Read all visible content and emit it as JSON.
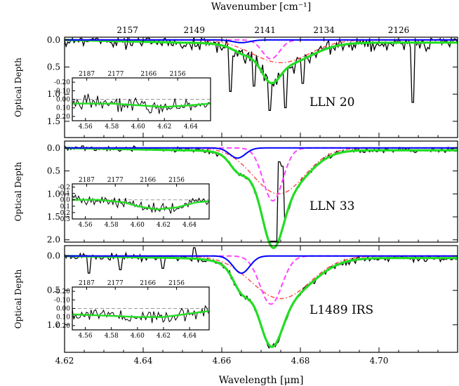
{
  "chart_data": {
    "type": "line",
    "xlabel": "Wavelength [μm]",
    "top_xlabel": "Wavenumber [cm⁻¹]",
    "xlim": [
      4.62,
      4.72
    ],
    "x_ticks": [
      "4.62",
      "4.64",
      "4.66",
      "4.68",
      "4.70"
    ],
    "top_ticks": [
      "2157",
      "2149",
      "2141",
      "2134",
      "2126"
    ],
    "top_tick_positions_um": [
      4.636,
      4.653,
      4.671,
      4.686,
      4.705
    ],
    "ylabel": "Optical Depth",
    "y_inverted": true,
    "colors": {
      "data": "#000000",
      "fit": "#22dd22",
      "blue_component": "#0000ff",
      "magenta_component": "#ff44ff",
      "red_component": "#ff4444"
    },
    "panels": [
      {
        "label": "LLN 20",
        "ylim": [
          1.8,
          -0.05
        ],
        "y_ticks": [
          "0.0",
          "0.5",
          "1.0",
          "1.5"
        ],
        "blue": {
          "center": 4.665,
          "depth": 0.05,
          "width": 0.0022
        },
        "magenta": {
          "center": 4.6725,
          "depth": 0.35,
          "width": 0.0022
        },
        "red": {
          "center": 4.675,
          "depth": 0.42,
          "width": 0.0072
        },
        "fit_offset": 0.05,
        "noise": 0.12,
        "spikes": [
          [
            4.672,
            1.3
          ],
          [
            4.676,
            1.25
          ],
          [
            4.7085,
            1.15
          ],
          [
            4.662,
            0.95
          ],
          [
            4.668,
            0.85
          ],
          [
            4.6805,
            0.8
          ]
        ],
        "inset": {
          "top_ticks": [
            "2187",
            "2177",
            "2166",
            "2156"
          ],
          "x_ticks": [
            "4.56",
            "4.58",
            "4.60",
            "4.62",
            "4.64"
          ],
          "xlim": [
            4.55,
            4.655
          ],
          "y_ticks": [
            "-0.20",
            "-0.10",
            "0.00",
            "0.10",
            "0.20"
          ],
          "ylim": [
            0.25,
            -0.25
          ],
          "fit": [
            [
              4.55,
              0.05
            ],
            [
              4.58,
              0.05
            ],
            [
              4.6,
              0.07
            ],
            [
              4.62,
              0.09
            ],
            [
              4.64,
              0.07
            ],
            [
              4.655,
              0.05
            ]
          ]
        }
      },
      {
        "label": "LLN 33",
        "ylim": [
          2.05,
          -0.15
        ],
        "y_ticks": [
          "0.0",
          "0.5",
          "1.0",
          "1.5",
          "2.0"
        ],
        "blue": {
          "center": 4.664,
          "depth": 0.22,
          "width": 0.002
        },
        "magenta": {
          "center": 4.673,
          "depth": 1.15,
          "width": 0.0025
        },
        "red": {
          "center": 4.6745,
          "depth": 1.0,
          "width": 0.0065
        },
        "fit_offset": 0.05,
        "noise": 0.05,
        "spikes": [
          [
            4.6755,
            0.4
          ],
          [
            4.6745,
            0.3
          ]
        ],
        "inset": {
          "top_ticks": [
            "2187",
            "2177",
            "2166",
            "2156"
          ],
          "x_ticks": [
            "4.56",
            "4.58",
            "4.60",
            "4.62",
            "4.64"
          ],
          "xlim": [
            4.55,
            4.655
          ],
          "y_ticks": [
            "-0.2",
            "-0.1",
            "0.0",
            "0.1",
            "0.2",
            "0.3"
          ],
          "ylim": [
            0.3,
            -0.25
          ],
          "fit": [
            [
              4.55,
              0.0
            ],
            [
              4.57,
              0.0
            ],
            [
              4.59,
              0.04
            ],
            [
              4.6,
              0.1
            ],
            [
              4.615,
              0.15
            ],
            [
              4.63,
              0.12
            ],
            [
              4.645,
              0.04
            ],
            [
              4.655,
              0.02
            ]
          ]
        }
      },
      {
        "label": "L1489 IRS",
        "ylim": [
          1.4,
          -0.15
        ],
        "y_ticks": [
          "0.0",
          "0.5",
          "1.0"
        ],
        "blue": {
          "center": 4.665,
          "depth": 0.25,
          "width": 0.0021
        },
        "magenta": {
          "center": 4.6725,
          "depth": 0.7,
          "width": 0.0028
        },
        "red": {
          "center": 4.675,
          "depth": 0.62,
          "width": 0.0075
        },
        "fit_offset": 0.03,
        "noise": 0.04,
        "spikes": [
          [
            4.653,
            -0.12
          ],
          [
            4.626,
            0.25
          ],
          [
            4.634,
            0.2
          ],
          [
            4.645,
            0.18
          ]
        ],
        "inset": {
          "top_ticks": [
            "2187",
            "2177",
            "2166",
            "2156"
          ],
          "x_ticks": [
            "4.56",
            "4.58",
            "4.60",
            "4.62",
            "4.64"
          ],
          "xlim": [
            4.55,
            4.655
          ],
          "y_ticks": [
            "-0.20",
            "-0.10",
            "0.00",
            "0.10",
            "0.20"
          ],
          "ylim": [
            0.25,
            -0.25
          ],
          "fit": [
            [
              4.55,
              0.07
            ],
            [
              4.57,
              0.08
            ],
            [
              4.6,
              0.1
            ],
            [
              4.62,
              0.1
            ],
            [
              4.64,
              0.06
            ],
            [
              4.655,
              0.03
            ]
          ]
        }
      }
    ]
  }
}
